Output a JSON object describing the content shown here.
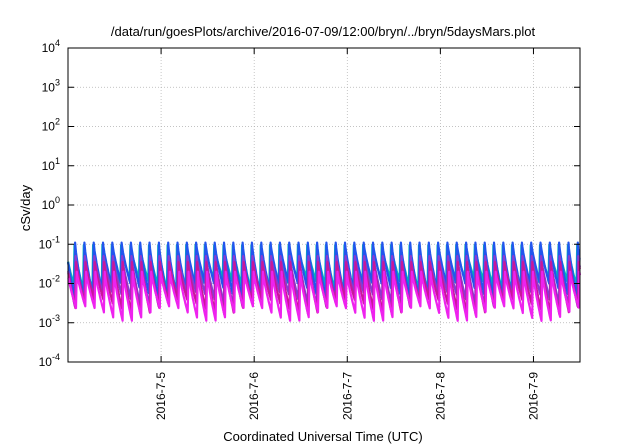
{
  "chart_data": {
    "type": "line",
    "title": "/data/run/goesPlots/archive/2016-07-09/12:00/bryn/../bryn/5daysMars.plot",
    "xlabel": "Coordinated Universal Time (UTC)",
    "ylabel": "cSv/day",
    "yscale": "log",
    "ylim": [
      0.0001,
      10000
    ],
    "y_ticks": [
      {
        "base": "10",
        "exp": "-4",
        "value": 0.0001
      },
      {
        "base": "10",
        "exp": "-3",
        "value": 0.001
      },
      {
        "base": "10",
        "exp": "-2",
        "value": 0.01
      },
      {
        "base": "10",
        "exp": "-1",
        "value": 0.1
      },
      {
        "base": "10",
        "exp": "0",
        "value": 1
      },
      {
        "base": "10",
        "exp": "1",
        "value": 10
      },
      {
        "base": "10",
        "exp": "2",
        "value": 100
      },
      {
        "base": "10",
        "exp": "3",
        "value": 1000
      },
      {
        "base": "10",
        "exp": "4",
        "value": 10000
      }
    ],
    "xlim": [
      "2016-07-04",
      "2016-07-09 12:00"
    ],
    "x_ticks": [
      "2016-7-5",
      "2016-7-6",
      "2016-7-7",
      "2016-7-8",
      "2016-7-9"
    ],
    "grid": true,
    "cycles_per_day": 10,
    "series": [
      {
        "color": "#00b8b8",
        "low": 0.006,
        "high": 0.095
      },
      {
        "color": "#2255ee",
        "low": 0.004,
        "high": 0.11
      },
      {
        "color": "#8a3ad0",
        "low": 0.0025,
        "high": 0.05
      },
      {
        "color": "#c8179a",
        "low": 0.0016,
        "high": 0.035
      },
      {
        "color": "#ee22ee",
        "low": 0.0011,
        "high": 0.02
      }
    ]
  }
}
